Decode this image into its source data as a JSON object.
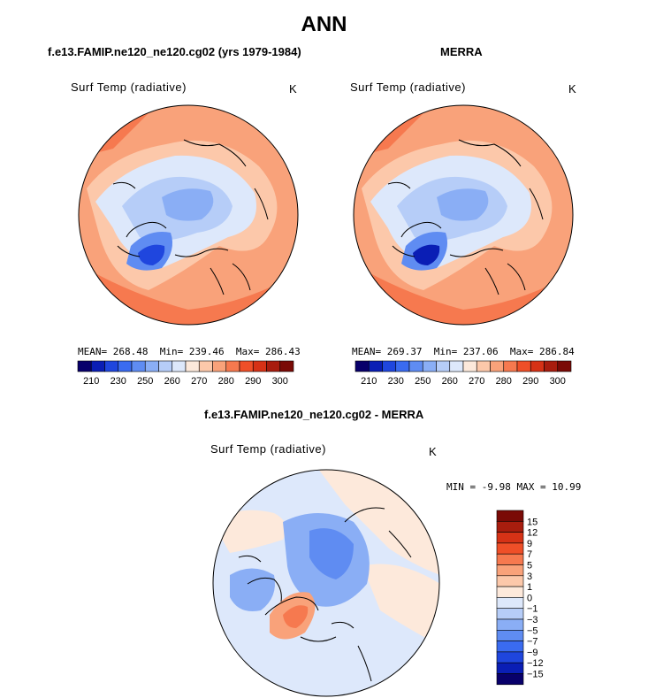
{
  "figure": {
    "title": "ANN",
    "colors": {
      "cold": [
        "#08006b",
        "#0a1eb5",
        "#1f46de",
        "#3a6bf0",
        "#5f8cf2",
        "#8aaef5",
        "#b6cdf8",
        "#dde8fb"
      ],
      "warm": [
        "#fde9db",
        "#fcc8aa",
        "#f9a27a",
        "#f6794f",
        "#ef4f28",
        "#d63216",
        "#a81d0e",
        "#7a0a06"
      ],
      "land_outline": "#000000"
    }
  },
  "chart_data": [
    {
      "type": "heatmap",
      "title": "f.e13.FAMIP.ne120_ne120.cg02 (yrs 1979-1984)",
      "variable": "Surf Temp (radiative)",
      "units": "K",
      "stats": {
        "mean_label": "MEAN=",
        "mean": "268.48",
        "min_label": "Min=",
        "min": "239.46",
        "max_label": "Max=",
        "max": "286.43"
      },
      "colorbar_ticks": [
        "210",
        "230",
        "250",
        "260",
        "270",
        "280",
        "290",
        "300"
      ],
      "colorbar_levels": 16
    },
    {
      "type": "heatmap",
      "title": "MERRA",
      "variable": "Surf Temp (radiative)",
      "units": "K",
      "stats": {
        "mean_label": "MEAN=",
        "mean": "269.37",
        "min_label": "Min=",
        "min": "237.06",
        "max_label": "Max=",
        "max": "286.84"
      },
      "colorbar_ticks": [
        "210",
        "230",
        "250",
        "260",
        "270",
        "280",
        "290",
        "300"
      ],
      "colorbar_levels": 16
    },
    {
      "type": "heatmap",
      "title": "f.e13.FAMIP.ne120_ne120.cg02 - MERRA",
      "variable": "Surf Temp (radiative)",
      "units": "K",
      "stats": {
        "min_label": "MIN =",
        "min": "-9.98",
        "max_label": "MAX =",
        "max": "10.99"
      },
      "colorbar_ticks": [
        "15",
        "12",
        "9",
        "7",
        "5",
        "3",
        "1",
        "0",
        "−1",
        "−3",
        "−5",
        "−7",
        "−9",
        "−12",
        "−15"
      ],
      "colorbar_levels": 16
    }
  ]
}
